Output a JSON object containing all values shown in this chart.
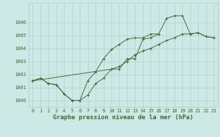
{
  "xlabel": "Graphe pression niveau de la mer (hPa)",
  "hours": [
    0,
    1,
    2,
    3,
    4,
    5,
    6,
    7,
    8,
    9,
    10,
    11,
    12,
    13,
    14,
    15,
    16,
    17,
    18,
    19,
    20,
    21,
    22,
    23
  ],
  "line1": [
    1001.5,
    1001.7,
    1001.3,
    1001.2,
    1000.5,
    1000.0,
    1000.0,
    1000.4,
    1001.3,
    1001.7,
    1002.4,
    1002.4,
    1003.2,
    1003.2,
    1004.7,
    1004.8,
    1005.1,
    1006.3,
    1006.5,
    1006.5,
    1005.1,
    1005.2,
    1004.9,
    1004.8
  ],
  "line2": [
    1001.5,
    1001.7,
    1001.3,
    1001.2,
    1000.5,
    1000.0,
    1000.0,
    1001.5,
    1002.2,
    1003.2,
    1003.9,
    1004.3,
    1004.7,
    1004.8,
    1004.8,
    1005.1,
    1005.1,
    null,
    null,
    null,
    null,
    null,
    null,
    null
  ],
  "line3": [
    1001.5,
    null,
    null,
    null,
    null,
    null,
    null,
    null,
    null,
    null,
    1002.4,
    1002.6,
    1003.0,
    1003.5,
    1003.8,
    1004.0,
    1004.3,
    1004.6,
    1004.8,
    1005.1,
    1005.1,
    1005.2,
    1004.9,
    1004.8
  ],
  "line_color": "#3a6b35",
  "bg_color": "#cde8e5",
  "grid_color": "#a8ccc9",
  "ylim": [
    999.5,
    1007.5
  ],
  "yticks": [
    1000,
    1001,
    1002,
    1003,
    1004,
    1005,
    1006
  ],
  "xlim": [
    -0.5,
    23.5
  ],
  "title_fontsize": 6.5,
  "tick_fontsize": 5
}
